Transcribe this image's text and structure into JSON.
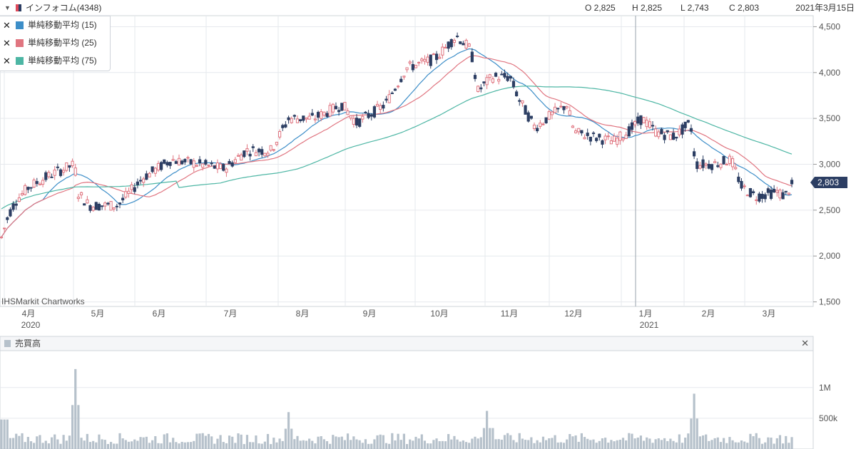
{
  "header": {
    "title": "インフォコム(4348)",
    "open": "O 2,825",
    "high": "H 2,825",
    "low": "L 2,743",
    "close": "C 2,803",
    "date": "2021年3月15日"
  },
  "legend": [
    {
      "label": "単純移動平均 (15)",
      "color": "#3d8ec8"
    },
    {
      "label": "単純移動平均 (25)",
      "color": "#e07580"
    },
    {
      "label": "単純移動平均 (75)",
      "color": "#4db6a4"
    }
  ],
  "credit": "IHSMarkit Chartworks",
  "volume_panel": {
    "label": "売買高",
    "close_icon": "close-icon"
  },
  "last_price_label": "2,803",
  "colors": {
    "up": "#e07580",
    "down": "#2c3e63",
    "volume": "#b6c1cb",
    "grid": "#e6e9ed"
  },
  "chart_data": [
    {
      "type": "candlestick",
      "y_axis_ticks": [
        "4,500",
        "4,000",
        "3,500",
        "3,000",
        "2,500",
        "2,000",
        "1,500"
      ],
      "y_axis_values": [
        4500,
        4000,
        3500,
        3000,
        2500,
        2000,
        1500
      ],
      "x_axis_labels": [
        "4月",
        "5月",
        "6月",
        "7月",
        "8月",
        "9月",
        "10月",
        "11月",
        "12月",
        "1月",
        "2月",
        "3月"
      ],
      "year_labels": [
        "2020",
        "2021"
      ],
      "ylim": [
        1450,
        4620
      ],
      "monthly_close_approx": [
        {
          "month": "2020-04",
          "close": 2850
        },
        {
          "month": "2020-05",
          "close": 2650
        },
        {
          "month": "2020-06",
          "close": 3050
        },
        {
          "month": "2020-07",
          "close": 3050
        },
        {
          "month": "2020-08",
          "close": 3400
        },
        {
          "month": "2020-09",
          "close": 3850
        },
        {
          "month": "2020-10",
          "close": 4000
        },
        {
          "month": "2020-11",
          "close": 3600
        },
        {
          "month": "2020-12",
          "close": 3300
        },
        {
          "month": "2021-01",
          "close": 3450
        },
        {
          "month": "2021-02",
          "close": 3000
        },
        {
          "month": "2021-03",
          "close": 2803
        }
      ],
      "series": [
        {
          "name": "単純移動平均 (15)",
          "end_value": 2730
        },
        {
          "name": "単純移動平均 (25)",
          "end_value": 2820
        },
        {
          "name": "単純移動平均 (75)",
          "end_value": 3170
        }
      ]
    },
    {
      "type": "bar",
      "title": "売買高",
      "y_axis_ticks": [
        "1M",
        "500k"
      ],
      "y_axis_values": [
        1000000,
        500000
      ],
      "peaks": [
        {
          "month": "2020-04",
          "value": 1300000
        },
        {
          "month": "2020-07",
          "value": 600000
        },
        {
          "month": "2020-10",
          "value": 620000
        },
        {
          "month": "2021-01",
          "value": 900000
        }
      ]
    }
  ]
}
